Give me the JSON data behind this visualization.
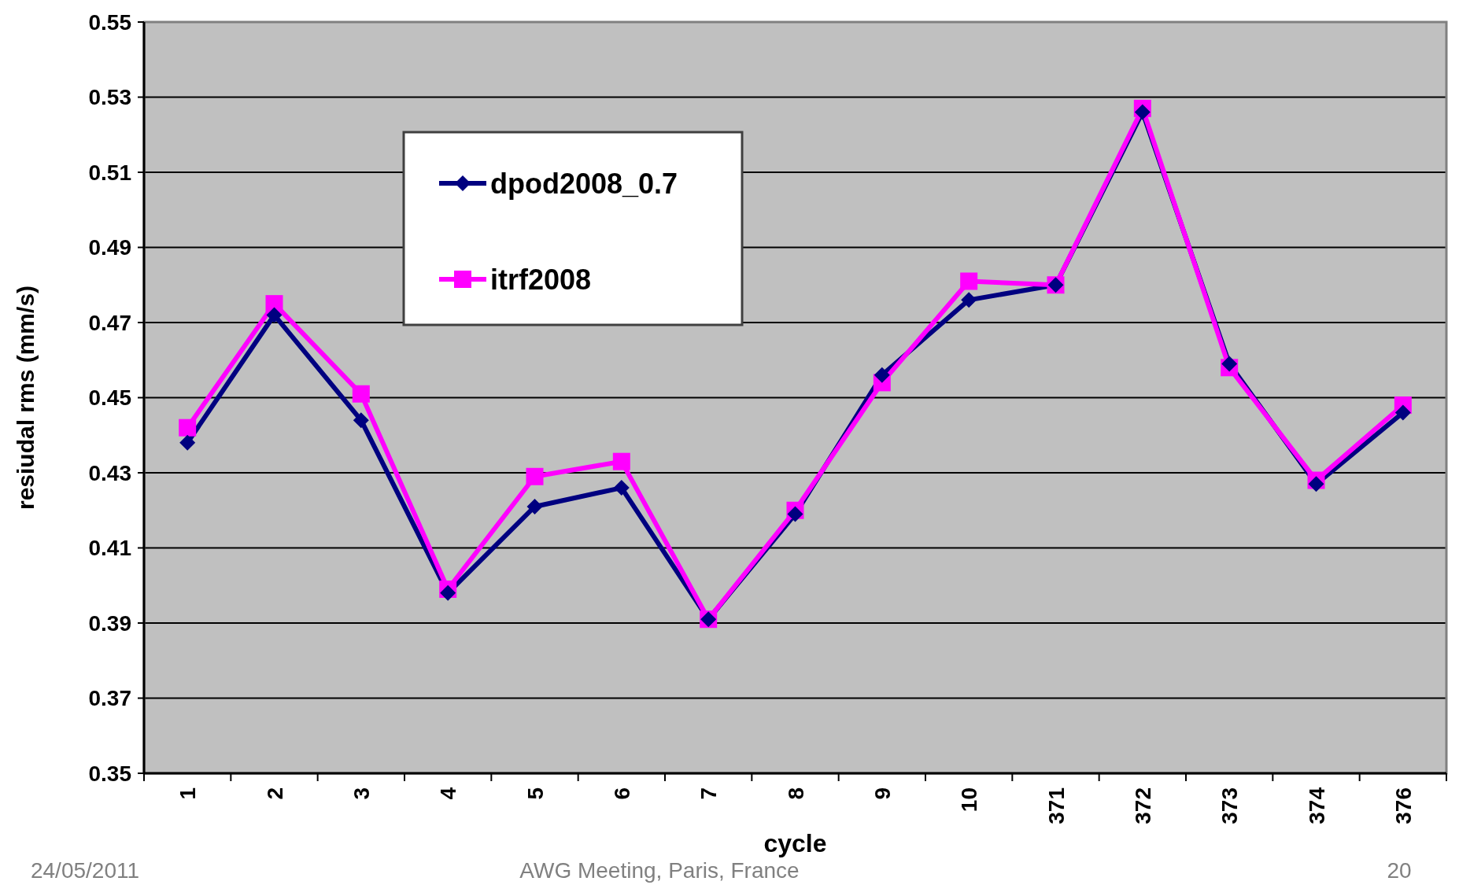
{
  "chart_data": {
    "type": "line",
    "xlabel": "cycle",
    "ylabel": "resiudal rms (mm/s)",
    "categories": [
      "1",
      "2",
      "3",
      "4",
      "5",
      "6",
      "7",
      "8",
      "9",
      "10",
      "371",
      "372",
      "373",
      "374",
      "376"
    ],
    "series": [
      {
        "name": "dpod2008_0.7",
        "color": "#000080",
        "marker": "diamond",
        "values": [
          0.438,
          0.472,
          0.444,
          0.398,
          0.421,
          0.426,
          0.391,
          0.419,
          0.456,
          0.476,
          0.48,
          0.526,
          0.459,
          0.427,
          0.446
        ]
      },
      {
        "name": "itrf2008",
        "color": "#ff00ff",
        "marker": "square",
        "values": [
          0.442,
          0.475,
          0.451,
          0.399,
          0.429,
          0.433,
          0.391,
          0.42,
          0.454,
          0.481,
          0.48,
          0.527,
          0.458,
          0.428,
          0.448
        ]
      }
    ],
    "ylim": [
      0.35,
      0.55
    ],
    "yticks": [
      0.35,
      0.37,
      0.39,
      0.41,
      0.43,
      0.45,
      0.47,
      0.49,
      0.51,
      0.53,
      0.55
    ],
    "grid": "y",
    "legend": "top left",
    "annotations": [
      "24/05/2011",
      "AWG Meeting, Paris, France",
      "20"
    ]
  }
}
